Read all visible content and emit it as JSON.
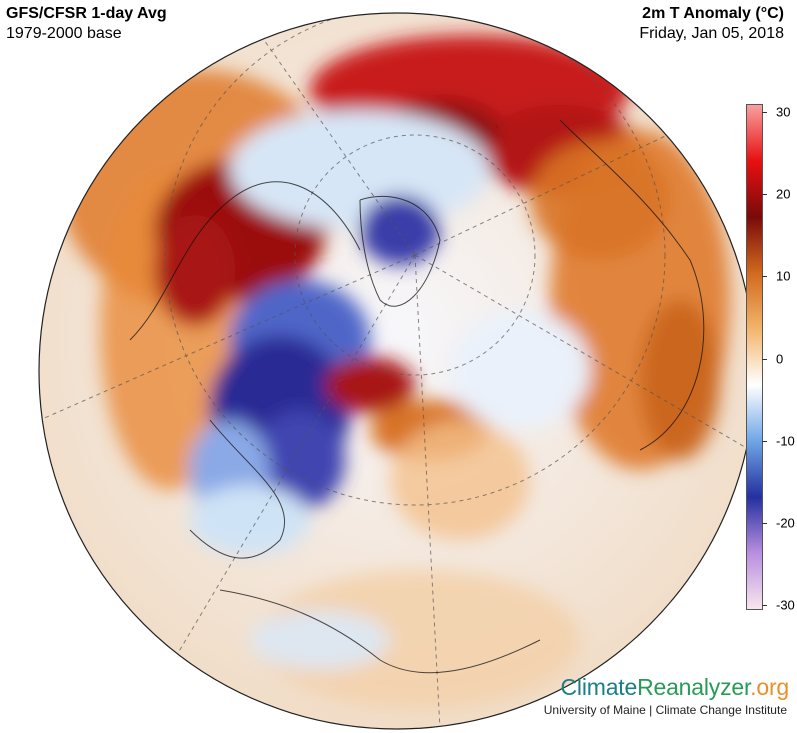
{
  "header": {
    "title_left": "GFS/CFSR 1-day Avg",
    "subtitle_left": "1979-2000 base",
    "title_right": "2m T Anomaly (°C)",
    "subtitle_right": "Friday, Jan 05, 2018"
  },
  "colorbar": {
    "ticks": [
      "30",
      "20",
      "10",
      "0",
      "-10",
      "-20",
      "-30"
    ],
    "gradient_stops": [
      "#f8e6ee",
      "#b98ee0",
      "#2430a0",
      "#6fa6e6",
      "#ffffff",
      "#f3b56a",
      "#d2691e",
      "#7a0a0a",
      "#e81010",
      "#f8a0a0"
    ]
  },
  "branding": {
    "part1": "Climate",
    "part2": "Reanalyzer",
    "part3": ".org",
    "subline": "University of Maine | Climate Change Institute"
  },
  "map": {
    "projection": "orthographic north polar view",
    "colors": {
      "warm_dark": "#8e0a0a",
      "warm_red": "#c81a1a",
      "warm_orange": "#df7a2c",
      "warm_light": "#f4c08c",
      "neutral": "#ffffff",
      "cool_light": "#cfe3f6",
      "cool_blue": "#5a7fd6",
      "cool_dark": "#2b2b95"
    }
  }
}
